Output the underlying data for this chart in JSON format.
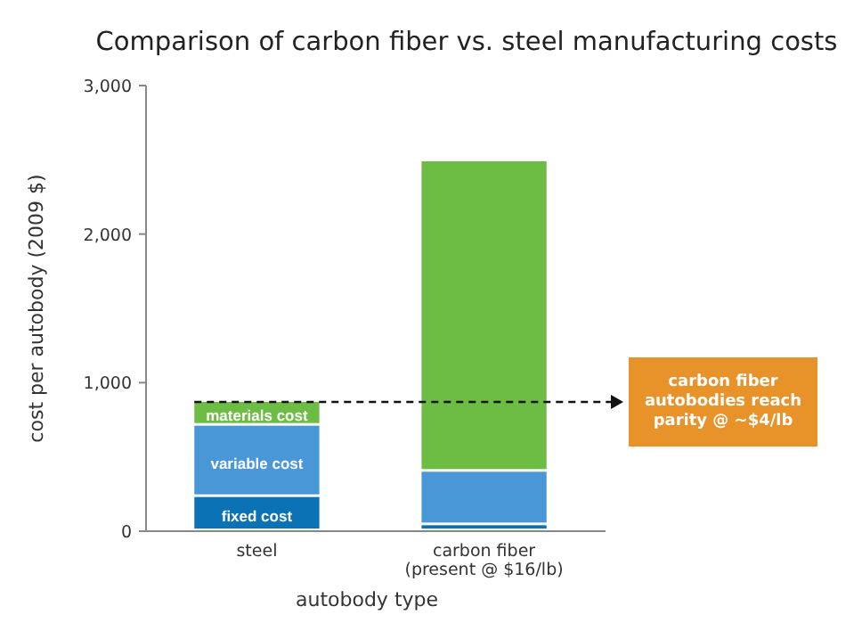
{
  "chart_data": {
    "type": "bar",
    "title": "Comparison of carbon fiber vs. steel manufacturing costs",
    "xlabel": "autobody type",
    "ylabel": "cost per autobody (2009 $)",
    "categories": [
      "steel",
      "carbon fiber (present @ $16/lb)"
    ],
    "stacked": true,
    "legend": false,
    "grid": false,
    "series": [
      {
        "name": "fixed cost",
        "color": "#0b72b5",
        "values": [
          230,
          40
        ]
      },
      {
        "name": "variable cost",
        "color": "#4a97d8",
        "values": [
          480,
          360
        ]
      },
      {
        "name": "materials cost",
        "color": "#6dbd45",
        "values": [
          160,
          2090
        ]
      }
    ],
    "ylim": [
      0,
      3000
    ],
    "yticks": [
      {
        "value": 0,
        "label": "0"
      },
      {
        "value": 1000,
        "label": "1,000"
      },
      {
        "value": 2000,
        "label": "2,000"
      },
      {
        "value": 3000,
        "label": "3,000"
      }
    ],
    "ref_lines": [
      {
        "axis": "y",
        "value": 870,
        "label": "carbon fiber autobodies reach parity @ ~$4/lb",
        "line_style": "dashed"
      }
    ]
  }
}
